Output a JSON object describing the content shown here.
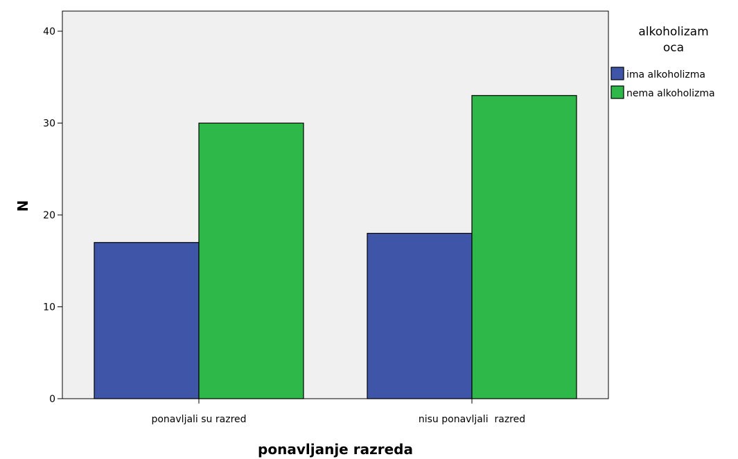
{
  "chart_data": {
    "type": "bar",
    "categories": [
      "ponavljali su razred",
      "nisu ponavljali  razred"
    ],
    "series": [
      {
        "name": "ima alkoholizma",
        "values": [
          17,
          18
        ],
        "color": "#3f56a8"
      },
      {
        "name": "nema alkoholizma",
        "values": [
          30,
          33
        ],
        "color": "#2fb84a"
      }
    ],
    "xlabel": "ponavljanje razreda",
    "ylabel": "N",
    "ylim": [
      0,
      42
    ],
    "yticks": [
      0,
      10,
      20,
      30,
      40
    ],
    "legend_title": [
      "alkoholizam",
      "oca"
    ],
    "legend_position": "right",
    "plot_background": "#f0f0f0",
    "grid": false
  }
}
